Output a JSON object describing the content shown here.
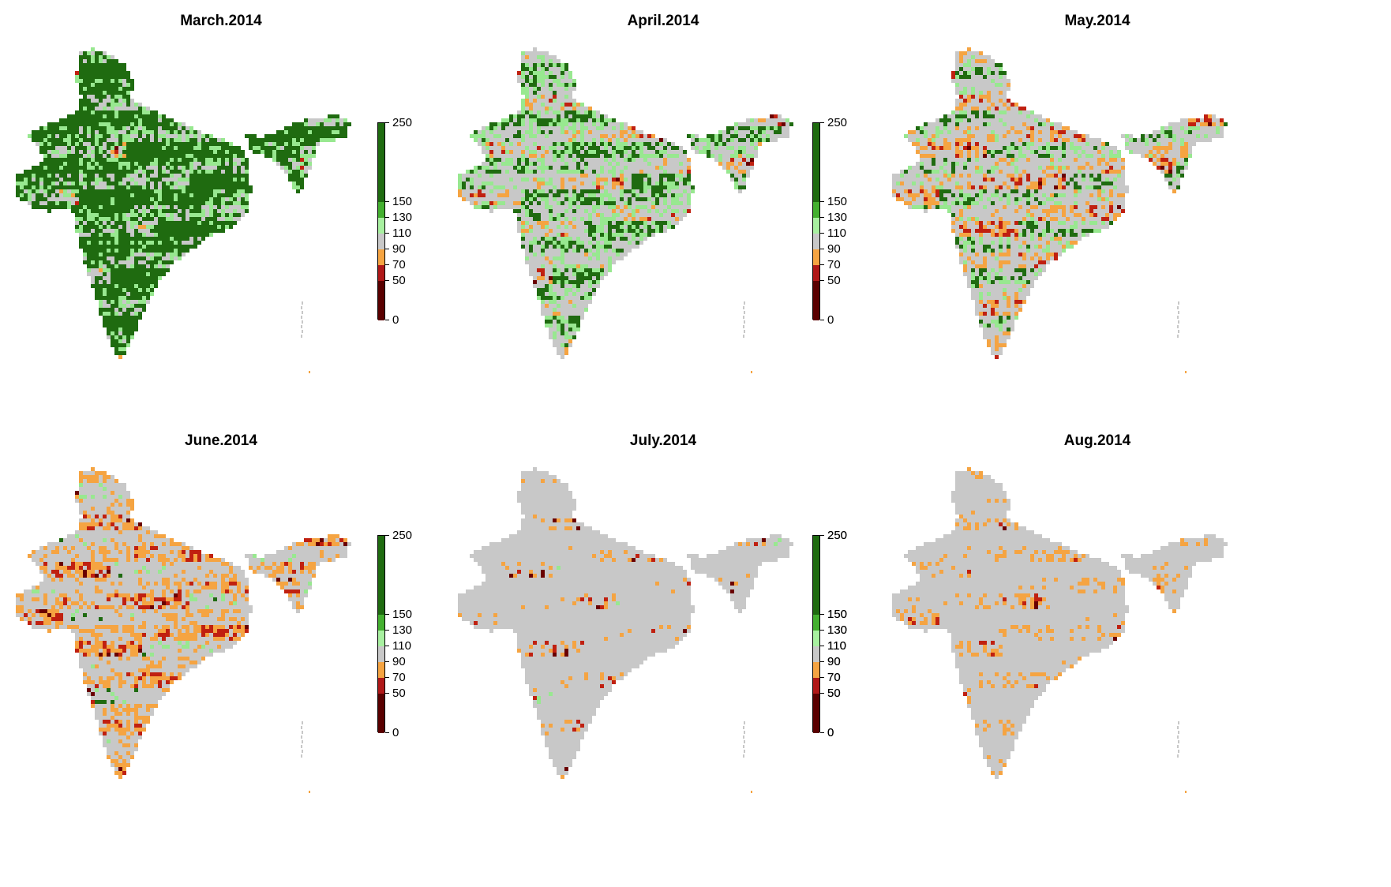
{
  "figure": {
    "panels": [
      {
        "title": "March.2014",
        "legend": true,
        "mix": {
          "dg": 0.58,
          "lg": 0.14,
          "gr": 0.22,
          "or": 0.03,
          "rd": 0.02,
          "dr": 0.01
        }
      },
      {
        "title": "April.2014",
        "legend": true,
        "mix": {
          "dg": 0.3,
          "lg": 0.16,
          "gr": 0.34,
          "or": 0.1,
          "rd": 0.06,
          "dr": 0.04
        }
      },
      {
        "title": "May.2014",
        "legend": false,
        "mix": {
          "dg": 0.2,
          "lg": 0.12,
          "gr": 0.36,
          "or": 0.17,
          "rd": 0.1,
          "dr": 0.05
        }
      },
      {
        "title": "June.2014",
        "legend": true,
        "mix": {
          "dg": 0.06,
          "lg": 0.06,
          "gr": 0.46,
          "or": 0.22,
          "rd": 0.12,
          "dr": 0.08
        }
      },
      {
        "title": "July.2014",
        "legend": true,
        "mix": {
          "dg": 0.01,
          "lg": 0.02,
          "gr": 0.8,
          "or": 0.08,
          "rd": 0.03,
          "dr": 0.06
        }
      },
      {
        "title": "Aug.2014",
        "legend": true,
        "mix": {
          "dg": 0.0,
          "lg": 0.02,
          "gr": 0.74,
          "or": 0.17,
          "rd": 0.04,
          "dr": 0.03
        }
      }
    ]
  },
  "legend": {
    "ticks": [
      "250",
      "150",
      "130",
      "110",
      "90",
      "70",
      "50",
      "0"
    ],
    "breaks": [
      0,
      50,
      70,
      90,
      110,
      130,
      150,
      250
    ],
    "colors": [
      "#5a0000",
      "#b01818",
      "#f5a442",
      "#c8c8c8",
      "#a8f0a0",
      "#44b030",
      "#1f6b10"
    ]
  },
  "palette": {
    "dark_green": "#1f6b10",
    "light_green": "#98e890",
    "gray": "#c8c8c8",
    "orange": "#f5a442",
    "red": "#c02010",
    "dark_red": "#6a0000"
  }
}
